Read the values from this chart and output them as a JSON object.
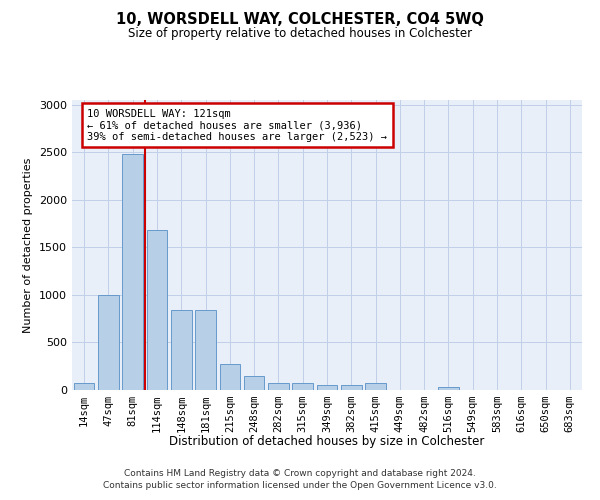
{
  "title": "10, WORSDELL WAY, COLCHESTER, CO4 5WQ",
  "subtitle": "Size of property relative to detached houses in Colchester",
  "xlabel": "Distribution of detached houses by size in Colchester",
  "ylabel": "Number of detached properties",
  "categories": [
    "14sqm",
    "47sqm",
    "81sqm",
    "114sqm",
    "148sqm",
    "181sqm",
    "215sqm",
    "248sqm",
    "282sqm",
    "315sqm",
    "349sqm",
    "382sqm",
    "415sqm",
    "449sqm",
    "482sqm",
    "516sqm",
    "549sqm",
    "583sqm",
    "616sqm",
    "650sqm",
    "683sqm"
  ],
  "values": [
    75,
    1000,
    2480,
    1680,
    840,
    840,
    270,
    150,
    75,
    75,
    50,
    50,
    75,
    0,
    0,
    30,
    0,
    0,
    0,
    0,
    0
  ],
  "bar_color": "#b8cfe8",
  "bar_edge_color": "#6699cc",
  "vline_pos": 2.5,
  "vline_color": "#cc0000",
  "annotation_text": "10 WORSDELL WAY: 121sqm\n← 61% of detached houses are smaller (3,936)\n39% of semi-detached houses are larger (2,523) →",
  "annotation_box_color": "#cc0000",
  "ylim": [
    0,
    3050
  ],
  "yticks": [
    0,
    500,
    1000,
    1500,
    2000,
    2500,
    3000
  ],
  "bg_color": "#e8eff8",
  "footer_line1": "Contains HM Land Registry data © Crown copyright and database right 2024.",
  "footer_line2": "Contains public sector information licensed under the Open Government Licence v3.0."
}
